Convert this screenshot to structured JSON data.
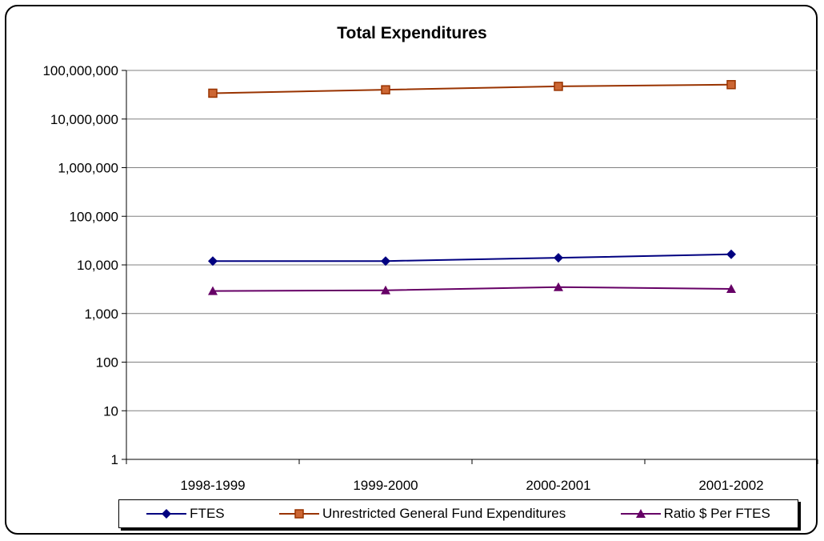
{
  "chart_data": {
    "type": "line",
    "title": "Total Expenditures",
    "xlabel": "",
    "ylabel": "",
    "categories": [
      "1998-1999",
      "1999-2000",
      "2000-2001",
      "2001-2002"
    ],
    "y_scale": "log",
    "ylim": [
      1,
      100000000
    ],
    "y_ticks": [
      1,
      10,
      100,
      1000,
      10000,
      100000,
      1000000,
      10000000,
      100000000
    ],
    "y_tick_labels": [
      "1",
      "10",
      "100",
      "1,000",
      "10,000",
      "100,000",
      "1,000,000",
      "10,000,000",
      "100,000,000"
    ],
    "grid": true,
    "legend_position": "bottom",
    "series": [
      {
        "name": "FTES",
        "values": [
          12000,
          12000,
          14000,
          16500
        ],
        "color": "#000080",
        "marker": "diamond"
      },
      {
        "name": "Unrestricted General Fund Expenditures",
        "values": [
          34000000,
          40000000,
          47000000,
          51000000
        ],
        "color": "#993300",
        "marker": "square"
      },
      {
        "name": "Ratio $ Per FTES",
        "values": [
          2900,
          3000,
          3500,
          3200
        ],
        "color": "#660066",
        "marker": "triangle"
      }
    ]
  }
}
